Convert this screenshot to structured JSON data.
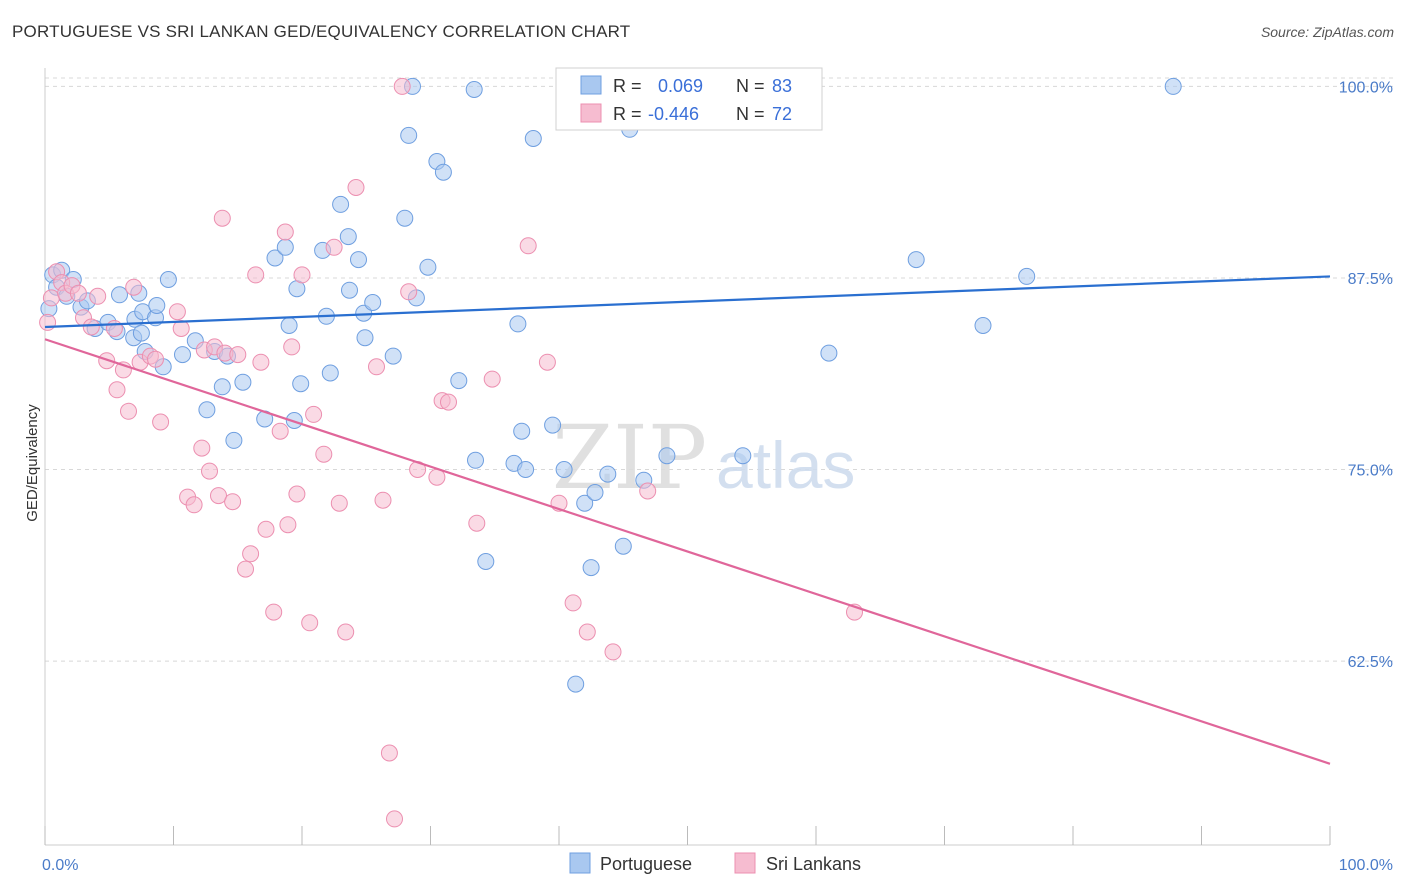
{
  "title": "PORTUGUESE VS SRI LANKAN GED/EQUIVALENCY CORRELATION CHART",
  "source": "Source: ZipAtlas.com",
  "watermark": {
    "zip": "ZIP",
    "atlas": "atlas"
  },
  "colors": {
    "portuguese_fill": "#a9c8f0",
    "portuguese_stroke": "#6f9fe0",
    "portuguese_line": "#2a6fd0",
    "srilankan_fill": "#f6bcd0",
    "srilankan_stroke": "#ec8fb0",
    "srilankan_line": "#e0669a",
    "tick_text": "#4a7bc8",
    "grid": "#d8d8d8"
  },
  "stats": {
    "r_label": "R =",
    "n_label": "N =",
    "portuguese": {
      "r": "0.069",
      "n": "83"
    },
    "srilankan": {
      "r": "-0.446",
      "n": "72"
    }
  },
  "legend": {
    "portuguese": "Portuguese",
    "srilankan": "Sri Lankans"
  },
  "chart_data": {
    "type": "scatter",
    "title": "PORTUGUESE VS SRI LANKAN GED/EQUIVALENCY CORRELATION CHART",
    "xlabel": "",
    "ylabel": "GED/Equivalency",
    "xlim": [
      0,
      100
    ],
    "ylim": [
      50.5,
      101.2
    ],
    "x_tick_labels": [
      "0.0%",
      "100.0%"
    ],
    "y_ticks": [
      62.5,
      75.0,
      87.5,
      100.0
    ],
    "y_tick_labels": [
      "62.5%",
      "75.0%",
      "87.5%",
      "100.0%"
    ],
    "grid": true,
    "legend_position": "bottom-center",
    "series": [
      {
        "name": "Portuguese",
        "trend": {
          "x": [
            0,
            100
          ],
          "y": [
            84.3,
            87.6
          ]
        },
        "points": [
          [
            0.3,
            85.5
          ],
          [
            0.6,
            87.7
          ],
          [
            0.9,
            86.9
          ],
          [
            1.3,
            88.0
          ],
          [
            1.7,
            86.3
          ],
          [
            2.2,
            87.4
          ],
          [
            2.8,
            85.6
          ],
          [
            3.3,
            86.0
          ],
          [
            3.9,
            84.2
          ],
          [
            4.9,
            84.6
          ],
          [
            5.6,
            84.0
          ],
          [
            5.8,
            86.4
          ],
          [
            6.9,
            83.6
          ],
          [
            7.0,
            84.8
          ],
          [
            7.3,
            86.5
          ],
          [
            7.6,
            85.3
          ],
          [
            7.8,
            82.7
          ],
          [
            7.5,
            83.9
          ],
          [
            8.6,
            84.9
          ],
          [
            8.7,
            85.7
          ],
          [
            9.2,
            81.7
          ],
          [
            9.6,
            87.4
          ],
          [
            10.7,
            82.5
          ],
          [
            11.7,
            83.4
          ],
          [
            12.6,
            78.9
          ],
          [
            13.2,
            82.7
          ],
          [
            13.8,
            80.4
          ],
          [
            14.2,
            82.4
          ],
          [
            14.7,
            76.9
          ],
          [
            15.4,
            80.7
          ],
          [
            17.1,
            78.3
          ],
          [
            17.9,
            88.8
          ],
          [
            18.7,
            89.5
          ],
          [
            19.0,
            84.4
          ],
          [
            19.6,
            86.8
          ],
          [
            19.4,
            78.2
          ],
          [
            19.9,
            80.6
          ],
          [
            21.6,
            89.3
          ],
          [
            21.9,
            85.0
          ],
          [
            22.2,
            81.3
          ],
          [
            23.0,
            92.3
          ],
          [
            23.6,
            90.2
          ],
          [
            24.4,
            88.7
          ],
          [
            23.7,
            86.7
          ],
          [
            24.8,
            85.2
          ],
          [
            24.9,
            83.6
          ],
          [
            25.5,
            85.9
          ],
          [
            27.1,
            82.4
          ],
          [
            28.0,
            91.4
          ],
          [
            28.3,
            96.8
          ],
          [
            28.6,
            100.0
          ],
          [
            28.9,
            86.2
          ],
          [
            29.8,
            88.2
          ],
          [
            30.5,
            95.1
          ],
          [
            31.0,
            94.4
          ],
          [
            32.2,
            80.8
          ],
          [
            33.4,
            99.8
          ],
          [
            33.5,
            75.6
          ],
          [
            34.3,
            69.0
          ],
          [
            36.5,
            75.4
          ],
          [
            36.8,
            84.5
          ],
          [
            37.1,
            77.5
          ],
          [
            37.4,
            75.0
          ],
          [
            38.0,
            96.6
          ],
          [
            39.5,
            77.9
          ],
          [
            40.4,
            75.0
          ],
          [
            40.7,
            100.0
          ],
          [
            41.3,
            61.0
          ],
          [
            42.0,
            72.8
          ],
          [
            42.5,
            68.6
          ],
          [
            42.8,
            73.5
          ],
          [
            43.8,
            74.7
          ],
          [
            45.0,
            70.0
          ],
          [
            45.5,
            97.2
          ],
          [
            46.6,
            74.3
          ],
          [
            48.4,
            75.9
          ],
          [
            50.2,
            100.0
          ],
          [
            54.3,
            75.9
          ],
          [
            61.0,
            82.6
          ],
          [
            67.8,
            88.7
          ],
          [
            73.0,
            84.4
          ],
          [
            76.4,
            87.6
          ],
          [
            87.8,
            100.0
          ]
        ]
      },
      {
        "name": "Sri Lankans",
        "trend": {
          "x": [
            0,
            100
          ],
          "y": [
            83.5,
            55.8
          ]
        },
        "points": [
          [
            0.2,
            84.6
          ],
          [
            0.5,
            86.2
          ],
          [
            0.9,
            87.9
          ],
          [
            1.3,
            87.2
          ],
          [
            1.6,
            86.5
          ],
          [
            2.1,
            87.0
          ],
          [
            2.6,
            86.5
          ],
          [
            3.0,
            84.9
          ],
          [
            3.6,
            84.3
          ],
          [
            4.1,
            86.3
          ],
          [
            4.8,
            82.1
          ],
          [
            5.4,
            84.2
          ],
          [
            5.6,
            80.2
          ],
          [
            6.1,
            81.5
          ],
          [
            6.5,
            78.8
          ],
          [
            6.9,
            86.9
          ],
          [
            7.4,
            82.0
          ],
          [
            8.2,
            82.4
          ],
          [
            8.6,
            82.2
          ],
          [
            9.0,
            78.1
          ],
          [
            10.3,
            85.3
          ],
          [
            10.6,
            84.2
          ],
          [
            11.1,
            73.2
          ],
          [
            11.6,
            72.7
          ],
          [
            12.2,
            76.4
          ],
          [
            12.4,
            82.8
          ],
          [
            12.8,
            74.9
          ],
          [
            13.2,
            83.0
          ],
          [
            13.5,
            73.3
          ],
          [
            13.8,
            91.4
          ],
          [
            14.0,
            82.6
          ],
          [
            14.6,
            72.9
          ],
          [
            15.0,
            82.5
          ],
          [
            15.6,
            68.5
          ],
          [
            16.0,
            69.5
          ],
          [
            16.4,
            87.7
          ],
          [
            16.8,
            82.0
          ],
          [
            17.2,
            71.1
          ],
          [
            17.8,
            65.7
          ],
          [
            18.3,
            77.5
          ],
          [
            18.7,
            90.5
          ],
          [
            18.9,
            71.4
          ],
          [
            19.2,
            83.0
          ],
          [
            19.6,
            73.4
          ],
          [
            20.0,
            87.7
          ],
          [
            20.6,
            65.0
          ],
          [
            20.9,
            78.6
          ],
          [
            21.7,
            76.0
          ],
          [
            22.5,
            89.5
          ],
          [
            22.9,
            72.8
          ],
          [
            23.4,
            64.4
          ],
          [
            24.2,
            93.4
          ],
          [
            25.8,
            81.7
          ],
          [
            26.3,
            73.0
          ],
          [
            26.8,
            56.5
          ],
          [
            27.2,
            52.2
          ],
          [
            27.8,
            100.0
          ],
          [
            28.3,
            86.6
          ],
          [
            29.0,
            75.0
          ],
          [
            30.5,
            74.5
          ],
          [
            30.9,
            79.5
          ],
          [
            31.4,
            79.4
          ],
          [
            33.6,
            71.5
          ],
          [
            34.8,
            80.9
          ],
          [
            37.6,
            89.6
          ],
          [
            39.1,
            82.0
          ],
          [
            40.0,
            72.8
          ],
          [
            41.1,
            66.3
          ],
          [
            42.2,
            64.4
          ],
          [
            44.2,
            63.1
          ],
          [
            46.9,
            73.6
          ],
          [
            63.0,
            65.7
          ]
        ]
      }
    ]
  }
}
